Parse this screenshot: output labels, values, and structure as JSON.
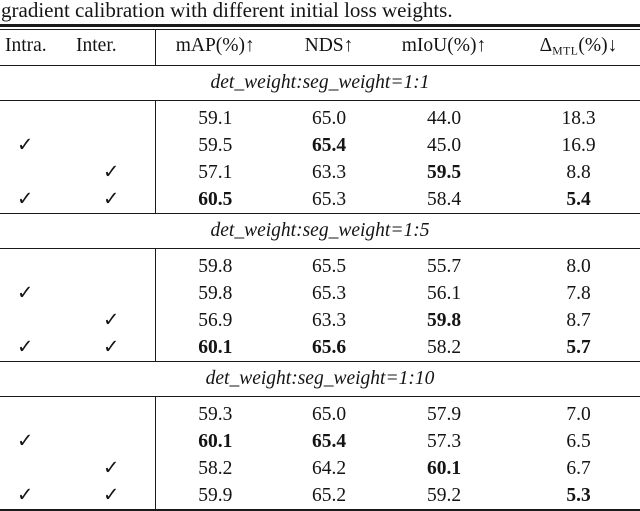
{
  "caption": "gradient calibration with different initial loss weights.",
  "glyphs": {
    "check": "✓"
  },
  "colors": {
    "text": "#141414",
    "rule": "#1a1a1a",
    "background": "#ffffff"
  },
  "table": {
    "headers": {
      "intra": "Intra.",
      "inter": "Inter.",
      "map": "mAP(%)↑",
      "nds": "NDS↑",
      "miou": "mIoU(%)↑",
      "delta_symbol": "Δ",
      "delta_sub": "MTL",
      "delta_rest": "(%)↓"
    },
    "sections": [
      {
        "title": "det_weight:seg_weight=1:1",
        "rows": [
          {
            "intra": false,
            "inter": false,
            "map": "59.1",
            "nds": "65.0",
            "miou": "44.0",
            "delta": "18.3",
            "bold": []
          },
          {
            "intra": true,
            "inter": false,
            "map": "59.5",
            "nds": "65.4",
            "miou": "45.0",
            "delta": "16.9",
            "bold": [
              "nds"
            ]
          },
          {
            "intra": false,
            "inter": true,
            "map": "57.1",
            "nds": "63.3",
            "miou": "59.5",
            "delta": "8.8",
            "bold": [
              "miou"
            ]
          },
          {
            "intra": true,
            "inter": true,
            "map": "60.5",
            "nds": "65.3",
            "miou": "58.4",
            "delta": "5.4",
            "bold": [
              "map",
              "delta"
            ]
          }
        ]
      },
      {
        "title": "det_weight:seg_weight=1:5",
        "rows": [
          {
            "intra": false,
            "inter": false,
            "map": "59.8",
            "nds": "65.5",
            "miou": "55.7",
            "delta": "8.0",
            "bold": []
          },
          {
            "intra": true,
            "inter": false,
            "map": "59.8",
            "nds": "65.3",
            "miou": "56.1",
            "delta": "7.8",
            "bold": []
          },
          {
            "intra": false,
            "inter": true,
            "map": "56.9",
            "nds": "63.3",
            "miou": "59.8",
            "delta": "8.7",
            "bold": [
              "miou"
            ]
          },
          {
            "intra": true,
            "inter": true,
            "map": "60.1",
            "nds": "65.6",
            "miou": "58.2",
            "delta": "5.7",
            "bold": [
              "map",
              "nds",
              "delta"
            ]
          }
        ]
      },
      {
        "title": "det_weight:seg_weight=1:10",
        "rows": [
          {
            "intra": false,
            "inter": false,
            "map": "59.3",
            "nds": "65.0",
            "miou": "57.9",
            "delta": "7.0",
            "bold": []
          },
          {
            "intra": true,
            "inter": false,
            "map": "60.1",
            "nds": "65.4",
            "miou": "57.3",
            "delta": "6.5",
            "bold": [
              "map",
              "nds"
            ]
          },
          {
            "intra": false,
            "inter": true,
            "map": "58.2",
            "nds": "64.2",
            "miou": "60.1",
            "delta": "6.7",
            "bold": [
              "miou"
            ]
          },
          {
            "intra": true,
            "inter": true,
            "map": "59.9",
            "nds": "65.2",
            "miou": "59.2",
            "delta": "5.3",
            "bold": [
              "delta"
            ]
          }
        ]
      }
    ]
  }
}
